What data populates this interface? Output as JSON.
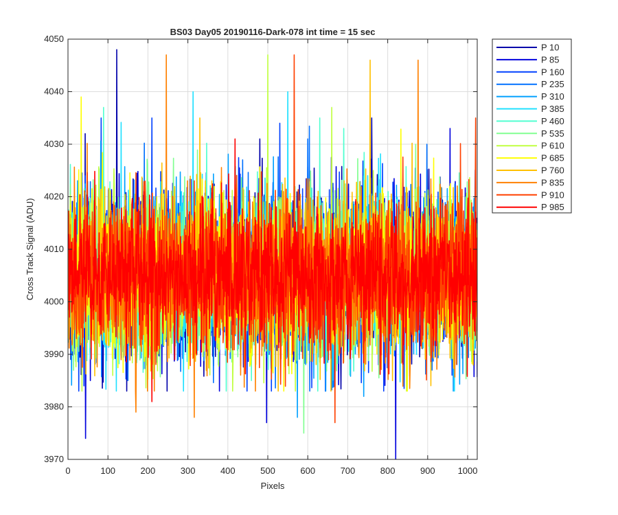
{
  "chart_data": {
    "type": "line",
    "title": "BS03 Day05 20190116-Dark-078 int time = 15 sec",
    "xlabel": "Pixels",
    "ylabel": "Cross Track Signal (ADU)",
    "xlim": [
      0,
      1024
    ],
    "ylim": [
      3970,
      4050
    ],
    "xticks": [
      0,
      100,
      200,
      300,
      400,
      500,
      600,
      700,
      800,
      900,
      1000
    ],
    "yticks": [
      3970,
      3980,
      3990,
      4000,
      4010,
      4020,
      4030,
      4040,
      4050
    ],
    "grid": true,
    "legend_position": "outside-top-right",
    "x_range": [
      1,
      1024
    ],
    "series": [
      {
        "name": "P 10",
        "color": "#0000aa",
        "mean": 4005,
        "spread": 7.5,
        "spikes": [
          [
            122,
            4048
          ],
          [
            760,
            4035
          ],
          [
            43,
            4032
          ],
          [
            480,
            4031
          ]
        ]
      },
      {
        "name": "P 85",
        "color": "#0000dd",
        "mean": 4005,
        "spread": 7.5,
        "spikes": [
          [
            497,
            3977
          ],
          [
            820,
            3970
          ],
          [
            44,
            3974
          ],
          [
            956,
            4033
          ]
        ]
      },
      {
        "name": "P 160",
        "color": "#0040ff",
        "mean": 4005,
        "spread": 7.5,
        "spikes": [
          [
            210,
            4035
          ],
          [
            530,
            4034
          ],
          [
            40,
            3984
          ]
        ]
      },
      {
        "name": "P 235",
        "color": "#0070ff",
        "mean": 4005,
        "spread": 7.5,
        "spikes": [
          [
            600,
            4031
          ],
          [
            150,
            3985
          ]
        ]
      },
      {
        "name": "P 310",
        "color": "#00a0ff",
        "mean": 4005,
        "spread": 7.5,
        "spikes": [
          [
            574,
            3978
          ],
          [
            740,
            3982
          ]
        ]
      },
      {
        "name": "P 385",
        "color": "#20e0ff",
        "mean": 4005,
        "spread": 7.5,
        "spikes": [
          [
            313,
            4040
          ],
          [
            550,
            4040
          ]
        ]
      },
      {
        "name": "P 460",
        "color": "#50ffd0",
        "mean": 4005,
        "spread": 7.5,
        "spikes": [
          [
            89,
            4037
          ],
          [
            690,
            4033
          ]
        ]
      },
      {
        "name": "P 535",
        "color": "#80ff90",
        "mean": 4005,
        "spread": 7.5,
        "spikes": [
          [
            590,
            3975
          ],
          [
            870,
            4030
          ]
        ]
      },
      {
        "name": "P 610",
        "color": "#c0ff40",
        "mean": 4005,
        "spread": 7.5,
        "spikes": [
          [
            500,
            4047
          ],
          [
            660,
            4037
          ]
        ]
      },
      {
        "name": "P 685",
        "color": "#ffff00",
        "mean": 4005,
        "spread": 7.5,
        "spikes": [
          [
            33,
            4039
          ],
          [
            540,
            3983
          ]
        ]
      },
      {
        "name": "P 760",
        "color": "#ffc000",
        "mean": 4005,
        "spread": 7.5,
        "spikes": [
          [
            756,
            4046
          ],
          [
            330,
            4035
          ]
        ]
      },
      {
        "name": "P 835",
        "color": "#ff8000",
        "mean": 4005,
        "spread": 7.5,
        "spikes": [
          [
            246,
            4047
          ],
          [
            876,
            4046
          ],
          [
            316,
            3978
          ],
          [
            170,
            3979
          ]
        ]
      },
      {
        "name": "P 910",
        "color": "#ff4000",
        "mean": 4005,
        "spread": 7.5,
        "spikes": [
          [
            566,
            4047
          ],
          [
            1020,
            4035
          ],
          [
            668,
            3977
          ]
        ]
      },
      {
        "name": "P 985",
        "color": "#ff0000",
        "mean": 4005,
        "spread": 6.5,
        "spikes": [
          [
            418,
            4031
          ],
          [
            210,
            3981
          ]
        ]
      }
    ]
  }
}
